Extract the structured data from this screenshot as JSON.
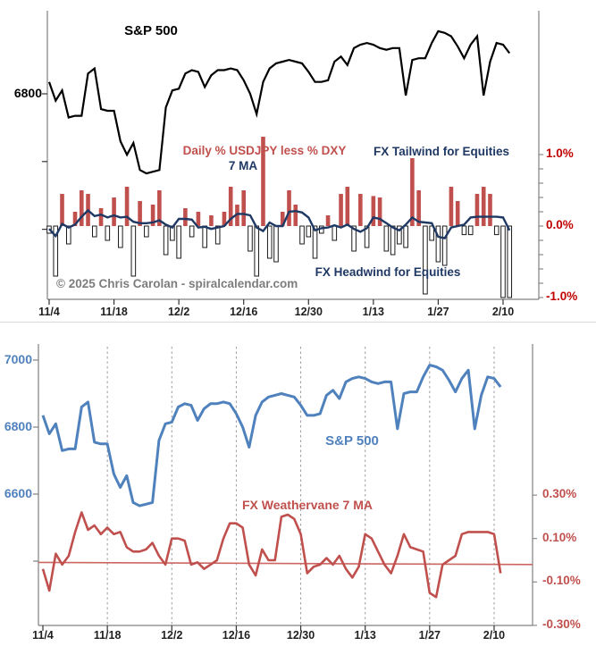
{
  "meta": {
    "copyright": "© 2025 Chris Carolan - spiralcalendar.com"
  },
  "colors": {
    "sp_line_top": "#000000",
    "ma_line_top": "#1f3864",
    "bar_positive": "#c0504d",
    "bar_negative_fill": "#ffffff",
    "bar_negative_stroke": "#1a1a1a",
    "pct_axis_top": "#c00000",
    "sp_line_bottom": "#4f81bd",
    "weathervane_line": "#c0504d",
    "trend_line": "#cc6662",
    "axis_gray": "#808080",
    "grid_dash": "#9b9b9b"
  },
  "top_chart": {
    "title": "S&P 500",
    "bar_series_label": "Daily % USDJPY less % DXY",
    "ma_label": "7 MA",
    "tailwind_label": "FX Tailwind for Equities",
    "headwind_label": "FX Headwind for Equities",
    "left_axis_label": "6800",
    "right_axis_labels": [
      "1.0%",
      "0.0%",
      "-1.0%"
    ]
  },
  "bottom_chart": {
    "sp_label": "S&P 500",
    "wv_label": "FX Weathervane 7 MA",
    "left_axis_labels": [
      "7000",
      "6800",
      "6600"
    ],
    "right_axis_labels": [
      "0.30%",
      "0.10%",
      "-0.10%",
      "-0.30%"
    ]
  },
  "chart_data": {
    "n_points": 72,
    "x_tick_labels": [
      "11/4",
      "11/18",
      "12/2",
      "12/16",
      "12/30",
      "1/13",
      "1/27",
      "2/10"
    ],
    "x_tick_indices": [
      0,
      10,
      20,
      30,
      40,
      50,
      60,
      70
    ],
    "charts": [
      {
        "title": "S&P 500 vs Daily % USDJPY less % DXY 7 MA",
        "type": "line+bar",
        "series": [
          {
            "name": "S&P 500",
            "type": "line",
            "axis": "left",
            "values_key": "sp500"
          },
          {
            "name": "Daily % USDJPY less % DXY",
            "type": "bar",
            "axis": "right",
            "values_key": "fx_daily_pct"
          },
          {
            "name": "7 MA",
            "type": "line",
            "axis": "right",
            "values_key": "fx_ma7_pct"
          }
        ],
        "left_axis": {
          "ticks": [
            6800,
            6600,
            6400
          ],
          "labeled": [
            6800
          ]
        },
        "right_axis": {
          "labels": [
            "1.0%",
            "0.0%",
            "-1.0%"
          ],
          "label_values": [
            1.0,
            0.0,
            -1.0
          ],
          "minor_tick_step": 0.2,
          "range": [
            -1.0,
            1.0
          ]
        }
      },
      {
        "title": "S&P 500 vs FX Weathervane 7 MA",
        "type": "line",
        "series": [
          {
            "name": "S&P 500",
            "type": "line",
            "axis": "left",
            "values_key": "sp500"
          },
          {
            "name": "FX Weathervane 7 MA",
            "type": "line",
            "axis": "right",
            "values_key": "fx_ma7_pct"
          },
          {
            "name": "trend",
            "type": "straight-line",
            "axis": "right",
            "values_key": "trend_pct"
          }
        ],
        "left_axis": {
          "ticks": [
            7000,
            6800,
            6600,
            6400
          ],
          "labeled": [
            7000,
            6800,
            6600
          ]
        },
        "right_axis": {
          "labels": [
            "0.30%",
            "0.10%",
            "-0.10%",
            "-0.30%"
          ],
          "label_values": [
            0.3,
            0.1,
            -0.1,
            -0.3
          ],
          "range": [
            -0.3,
            0.3
          ]
        },
        "grid": "vertical-dashed"
      }
    ],
    "sp500": [
      6835,
      6780,
      6810,
      6730,
      6735,
      6735,
      6860,
      6875,
      6755,
      6750,
      6750,
      6660,
      6620,
      6655,
      6575,
      6565,
      6570,
      6575,
      6760,
      6810,
      6815,
      6860,
      6870,
      6865,
      6820,
      6855,
      6870,
      6870,
      6875,
      6870,
      6840,
      6800,
      6740,
      6835,
      6875,
      6890,
      6895,
      6900,
      6895,
      6890,
      6865,
      6835,
      6835,
      6840,
      6895,
      6910,
      6885,
      6935,
      6945,
      6950,
      6945,
      6935,
      6930,
      6935,
      6935,
      6795,
      6900,
      6905,
      6905,
      6950,
      6985,
      6980,
      6970,
      6940,
      6905,
      6945,
      6970,
      6795,
      6895,
      6950,
      6945,
      6920
    ],
    "fx_daily_pct": [
      -0.1,
      -0.7,
      0.45,
      -0.25,
      0.2,
      0.5,
      0.45,
      -0.15,
      0.25,
      -0.2,
      0.4,
      -0.3,
      0.55,
      -0.7,
      0.35,
      -0.15,
      0.3,
      0.5,
      -0.4,
      -0.2,
      -0.45,
      0.25,
      -0.15,
      0.2,
      -0.3,
      0.15,
      -0.25,
      0.2,
      0.55,
      0.3,
      0.5,
      -0.35,
      -0.7,
      1.25,
      -0.45,
      -0.5,
      0.2,
      0.5,
      0.3,
      -0.25,
      -0.15,
      -0.45,
      -0.1,
      0.15,
      -0.2,
      0.45,
      0.55,
      -0.35,
      0.45,
      -0.3,
      0.42,
      0.4,
      -0.35,
      -0.4,
      -0.25,
      -0.3,
      0.95,
      0.5,
      -0.95,
      -0.2,
      -0.5,
      -0.55,
      0.55,
      0.35,
      -0.12,
      -0.12,
      0.45,
      0.55,
      0.45,
      -0.12,
      -1.0,
      -1.0
    ],
    "fx_ma7_pct": [
      -0.04,
      -0.14,
      0.03,
      -0.02,
      0.02,
      0.13,
      0.22,
      0.14,
      0.16,
      0.12,
      0.15,
      0.12,
      0.13,
      0.06,
      0.04,
      0.04,
      0.05,
      0.08,
      0.02,
      -0.02,
      0.1,
      0.1,
      0.09,
      -0.02,
      -0.01,
      -0.04,
      -0.02,
      0.0,
      0.1,
      0.17,
      0.17,
      0.15,
      -0.02,
      -0.07,
      0.05,
      0.0,
      0.0,
      0.2,
      0.21,
      0.19,
      0.12,
      -0.06,
      -0.03,
      -0.02,
      0.01,
      -0.02,
      0.02,
      -0.04,
      -0.08,
      -0.03,
      0.12,
      0.1,
      0.04,
      -0.02,
      -0.06,
      0.02,
      0.12,
      0.06,
      0.05,
      0.04,
      -0.15,
      -0.17,
      -0.02,
      0.0,
      0.02,
      0.12,
      0.13,
      0.13,
      0.13,
      0.13,
      0.12,
      -0.06
    ],
    "trend_pct": {
      "start": -0.01,
      "end": -0.02
    }
  }
}
